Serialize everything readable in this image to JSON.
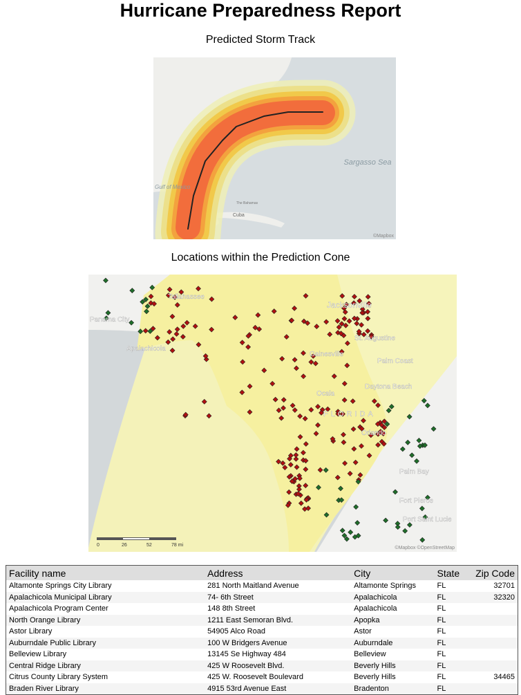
{
  "header": {
    "title": "Hurricane Preparedness Report"
  },
  "maps": [
    {
      "caption": "Predicted Storm Track",
      "labels": [
        "Sargasso Sea",
        "Cuba",
        "The Bahamas",
        "Gulf of Mexico"
      ],
      "attribution": "©Mapbox"
    },
    {
      "caption": "Locations within the Prediction Cone",
      "labels": [
        "Tallahassee",
        "Panama City",
        "Apalachicola",
        "Jacksonville",
        "St. Augustine",
        "Gainesville",
        "Palm Coast",
        "Ocala",
        "Daytona Beach",
        "FLORIDA",
        "Orlando",
        "Palm Bay",
        "Port Saint Lucie",
        "Fort Pierce"
      ],
      "scale": [
        "0",
        "26",
        "52",
        "78 mi"
      ],
      "attribution": "©Mapbox ©OpenStreetMap"
    }
  ],
  "table": {
    "columns": [
      "Facility name",
      "Address",
      "City",
      "State",
      "Zip Code"
    ],
    "rows": [
      [
        "Altamonte Springs City Library",
        "281 North Maitland Avenue",
        "Altamonte Springs",
        "FL",
        "32701"
      ],
      [
        "Apalachicola Municipal Library",
        "74- 6th Street",
        "Apalachicola",
        "FL",
        "32320"
      ],
      [
        "Apalachicola Program Center",
        "148 8th Street",
        "Apalachicola",
        "FL",
        null
      ],
      [
        "North Orange Library",
        "1211 East Semoran Blvd.",
        "Apopka",
        "FL",
        null
      ],
      [
        "Astor Library",
        "54905 Alco Road",
        "Astor",
        "FL",
        null
      ],
      [
        "Auburndale Public Library",
        "100 W Bridgers Avenue",
        "Auburndale",
        "FL",
        null
      ],
      [
        "Belleview Library",
        "13145 Se Highway 484",
        "Belleview",
        "FL",
        null
      ],
      [
        "Central Ridge Library",
        "425 W Roosevelt Blvd.",
        "Beverly Hills",
        "FL",
        null
      ],
      [
        "Citrus County Library System",
        "425 W. Roosevelt Boulevard",
        "Beverly Hills",
        "FL",
        "34465"
      ],
      [
        "Braden River Library",
        "4915 53rd Avenue East",
        "Bradenton",
        "FL",
        null
      ]
    ]
  }
}
